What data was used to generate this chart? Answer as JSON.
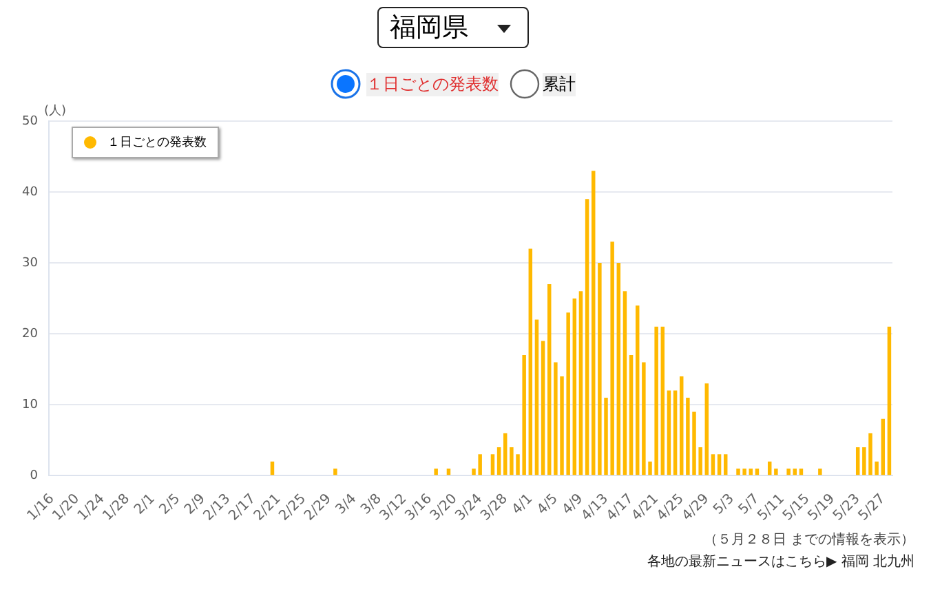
{
  "chart_data": {
    "type": "bar",
    "title": "福岡県",
    "ylabel": "(人)",
    "categories": [
      "1/16",
      null,
      null,
      null,
      "1/20",
      null,
      null,
      null,
      "1/24",
      null,
      null,
      null,
      "1/28",
      null,
      null,
      null,
      "2/1",
      null,
      null,
      null,
      "2/5",
      null,
      null,
      null,
      "2/9",
      null,
      null,
      null,
      "2/13",
      null,
      null,
      null,
      "2/17",
      null,
      null,
      null,
      "2/21",
      null,
      null,
      null,
      "2/25",
      null,
      null,
      null,
      "2/29",
      null,
      null,
      null,
      "3/4",
      null,
      null,
      null,
      "3/8",
      null,
      null,
      null,
      "3/12",
      null,
      null,
      null,
      "3/16",
      null,
      null,
      null,
      "3/20",
      null,
      null,
      null,
      "3/24",
      null,
      null,
      null,
      "3/28",
      null,
      null,
      null,
      "4/1",
      null,
      null,
      null,
      "4/5",
      null,
      null,
      null,
      "4/9",
      null,
      null,
      null,
      "4/13",
      null,
      null,
      null,
      "4/17",
      null,
      null,
      null,
      "4/21",
      null,
      null,
      null,
      "4/25",
      null,
      null,
      null,
      "4/29",
      null,
      null,
      null,
      "5/3",
      null,
      null,
      null,
      "5/7",
      null,
      null,
      null,
      "5/11",
      null,
      null,
      null,
      "5/15",
      null,
      null,
      null,
      "5/19",
      null,
      null,
      null,
      "5/23",
      null,
      null,
      null,
      "5/27",
      null
    ],
    "series": [
      {
        "name": "１日ごとの発表数",
        "color": "#ffb900",
        "values": [
          0,
          0,
          0,
          0,
          0,
          0,
          0,
          0,
          0,
          0,
          0,
          0,
          0,
          0,
          0,
          0,
          0,
          0,
          0,
          0,
          0,
          0,
          0,
          0,
          0,
          0,
          0,
          0,
          0,
          0,
          0,
          0,
          0,
          0,
          0,
          2,
          0,
          0,
          0,
          0,
          0,
          0,
          0,
          0,
          0,
          1,
          0,
          0,
          0,
          0,
          0,
          0,
          0,
          0,
          0,
          0,
          0,
          0,
          0,
          0,
          0,
          1,
          0,
          1,
          0,
          0,
          0,
          1,
          3,
          0,
          3,
          4,
          6,
          4,
          3,
          17,
          32,
          22,
          19,
          27,
          16,
          14,
          23,
          25,
          26,
          39,
          43,
          30,
          11,
          33,
          30,
          26,
          17,
          24,
          16,
          2,
          21,
          21,
          12,
          12,
          14,
          11,
          9,
          4,
          13,
          3,
          3,
          3,
          0,
          1,
          1,
          1,
          1,
          0,
          2,
          1,
          0,
          1,
          1,
          1,
          0,
          0,
          1,
          0,
          0,
          0,
          0,
          0,
          4,
          4,
          6,
          2,
          8,
          21
        ]
      }
    ],
    "ylim": [
      0,
      50
    ],
    "yticks": [
      0,
      10,
      20,
      30,
      40,
      50
    ],
    "grid": "y",
    "legend": "top left",
    "annotations": [
      "１日ごとの発表数",
      "累計",
      "（５月２８日 までの情報を表示）",
      "各地の最新ニュースはこちら▶ 福岡 北九州"
    ]
  }
}
